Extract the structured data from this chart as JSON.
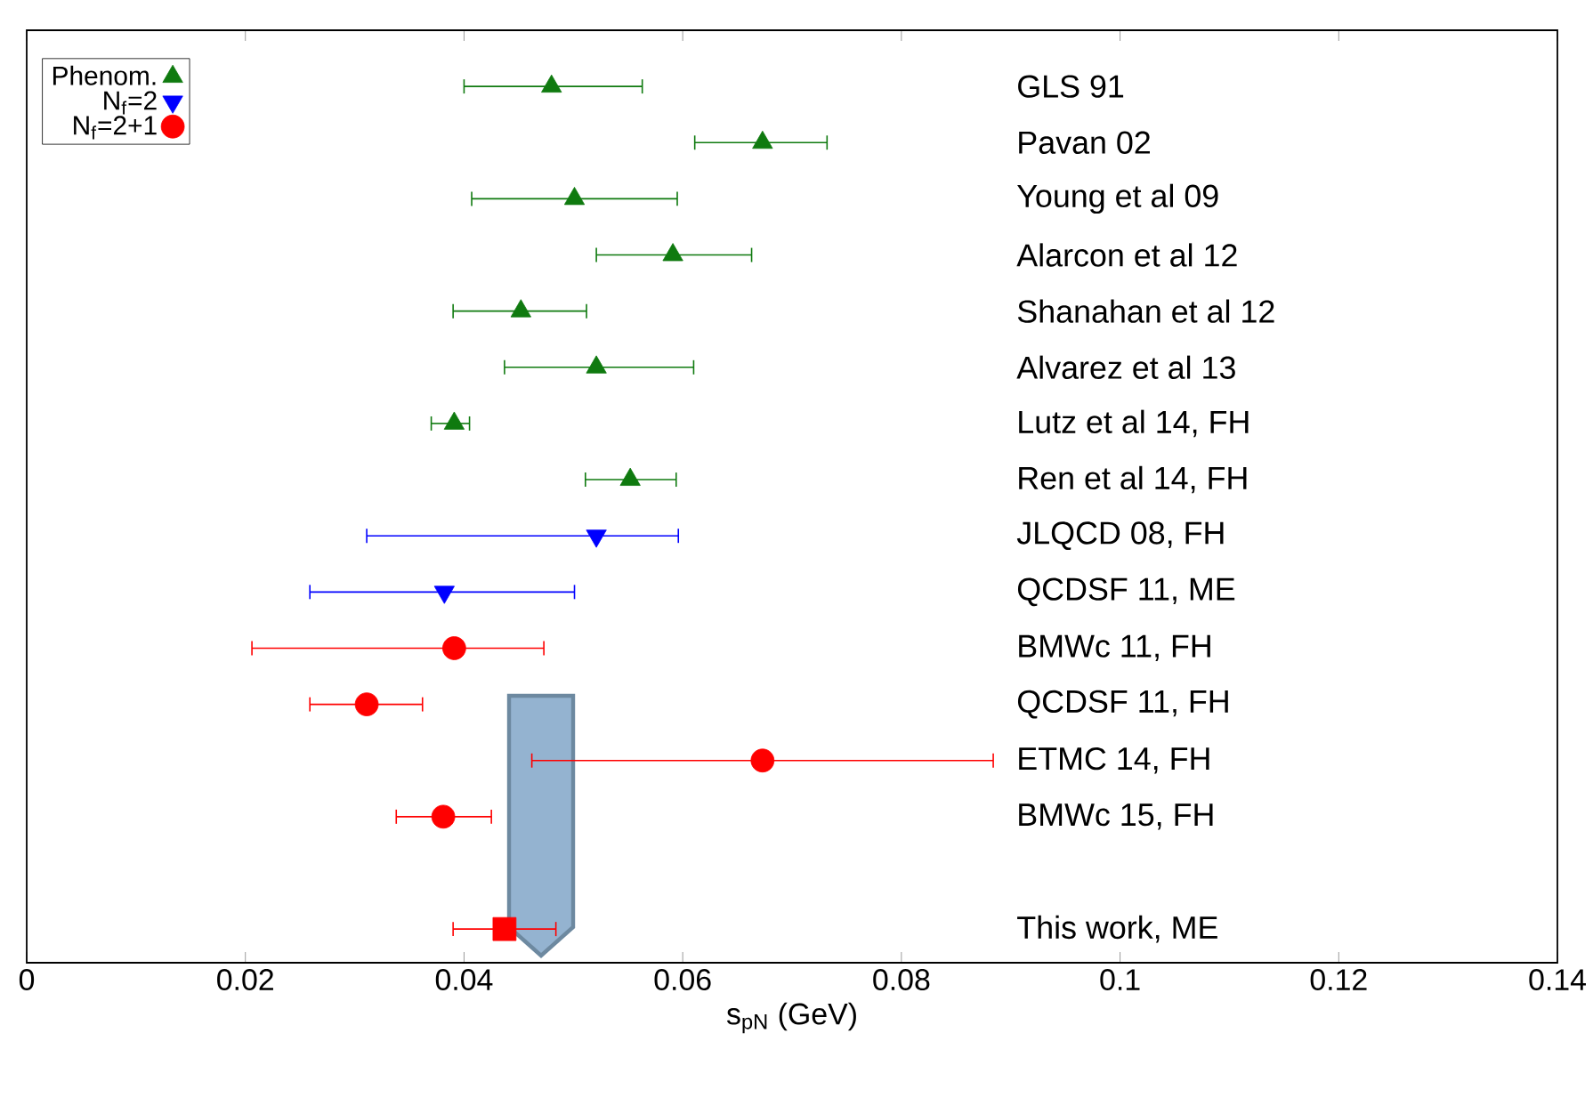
{
  "chart_data": {
    "type": "scatter",
    "orientation": "horizontal",
    "xlabel": "s$_{pN}$ (GeV)",
    "categories": [
      "GLS 91",
      "Pavan 02",
      "Young et al 09",
      "Alarcon et al 12",
      "Shanahan et al 12",
      "Alvarez et al 13",
      "Lutz et al 14, FH",
      "Ren et al 14, FH",
      "JLQCD 08, FH",
      "QCDSF 11, ME",
      "BMWc 11, FH",
      "QCDSF 11, FH",
      "ETMC 14, FH",
      "BMWc 15, FH",
      null,
      "This work, ME"
    ],
    "series": [
      {
        "name": "Phenom.",
        "color": "#0f7a0f",
        "marker": "triangle",
        "values": [
          0.048,
          0.0673,
          0.0501,
          0.0591,
          0.0452,
          0.0521,
          0.0391,
          0.0552,
          null,
          null,
          null,
          null,
          null,
          null,
          null,
          null
        ],
        "errors": [
          [
            0.04,
            0.0563
          ],
          [
            0.0611,
            0.0732
          ],
          [
            0.0407,
            0.0595
          ],
          [
            0.0521,
            0.0663
          ],
          [
            0.039,
            0.0512
          ],
          [
            0.0437,
            0.061
          ],
          [
            0.037,
            0.0405
          ],
          [
            0.0511,
            0.0594
          ],
          null,
          null,
          null,
          null,
          null,
          null,
          null,
          null
        ]
      },
      {
        "name": "N$_{f}$=2",
        "color": "#0000ff",
        "marker": "triangle down",
        "values": [
          null,
          null,
          null,
          null,
          null,
          null,
          null,
          null,
          0.0521,
          0.0382,
          null,
          null,
          null,
          null,
          null,
          null
        ],
        "errors": [
          null,
          null,
          null,
          null,
          null,
          null,
          null,
          null,
          [
            0.0311,
            0.0596
          ],
          [
            0.0259,
            0.0501
          ],
          null,
          null,
          null,
          null,
          null,
          null
        ]
      },
      {
        "name": "N$_{f}$=2+1",
        "color": "#ff0000",
        "marker": "circle",
        "values": [
          null,
          null,
          null,
          null,
          null,
          null,
          null,
          null,
          null,
          null,
          0.0391,
          0.0311,
          0.0673,
          0.0381,
          null,
          null
        ],
        "errors": [
          null,
          null,
          null,
          null,
          null,
          null,
          null,
          null,
          null,
          null,
          [
            0.0206,
            0.0473
          ],
          [
            0.0259,
            0.0362
          ],
          [
            0.0462,
            0.0884
          ],
          [
            0.0338,
            0.0425
          ],
          null,
          null
        ]
      },
      {
        "color": "#ff0000",
        "marker": "square",
        "values": [
          null,
          null,
          null,
          null,
          null,
          null,
          null,
          null,
          null,
          null,
          null,
          null,
          null,
          null,
          null,
          0.0437
        ],
        "errors": [
          null,
          null,
          null,
          null,
          null,
          null,
          null,
          null,
          null,
          null,
          null,
          null,
          null,
          null,
          null,
          [
            0.039,
            0.0484
          ]
        ]
      }
    ],
    "xlim": [
      0,
      0.14
    ],
    "xticks": [
      0,
      0.02,
      0.04,
      0.06,
      0.08,
      0.1,
      0.12,
      0.14
    ],
    "tick_labels": "x",
    "legend": "top left",
    "grid": false
  }
}
